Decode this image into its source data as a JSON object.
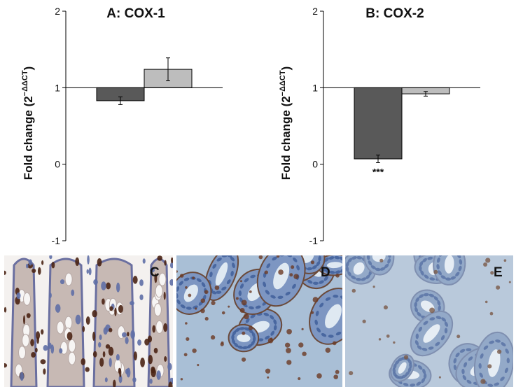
{
  "chart_data": [
    {
      "type": "bar",
      "title": "A: COX-1",
      "ylabel": "Fold change (2",
      "ylabel_superscript": "−ΔΔCT",
      "ylim": [
        -1,
        2
      ],
      "yticks": [
        -1,
        0,
        1,
        2
      ],
      "tick_labels": [
        "-1",
        "0",
        "1",
        "2"
      ],
      "baseline": 1,
      "grid": false,
      "legend": "none",
      "series": [
        {
          "values": [
            0.83,
            1.24
          ],
          "errors": [
            0.05,
            0.15
          ],
          "colors": [
            "#595959",
            "#bdbdbd"
          ]
        }
      ]
    },
    {
      "type": "bar",
      "title": "B: COX-2",
      "ylabel": "Fold change (2",
      "ylabel_superscript": "−ΔΔCT",
      "ylim": [
        -1,
        2
      ],
      "yticks": [
        -1,
        0,
        1,
        2
      ],
      "tick_labels": [
        "-1",
        "0",
        "1",
        "2"
      ],
      "baseline": 1,
      "grid": false,
      "legend": "none",
      "series": [
        {
          "values": [
            0.07,
            0.92
          ],
          "errors": [
            0.05,
            0.03
          ],
          "colors": [
            "#595959",
            "#bdbdbd"
          ]
        }
      ],
      "annotations": [
        {
          "bar": 0,
          "text": "***"
        }
      ]
    }
  ],
  "panels": [
    {
      "letter": "C",
      "stain": "brown"
    },
    {
      "letter": "D",
      "stain": "blue"
    },
    {
      "letter": "E",
      "stain": "blue-light"
    }
  ],
  "colors": {
    "bar_dark": "#595959",
    "bar_light": "#bdbdbd",
    "hematoxylin": "#5b7fb0",
    "dab": "#5a2e17"
  }
}
